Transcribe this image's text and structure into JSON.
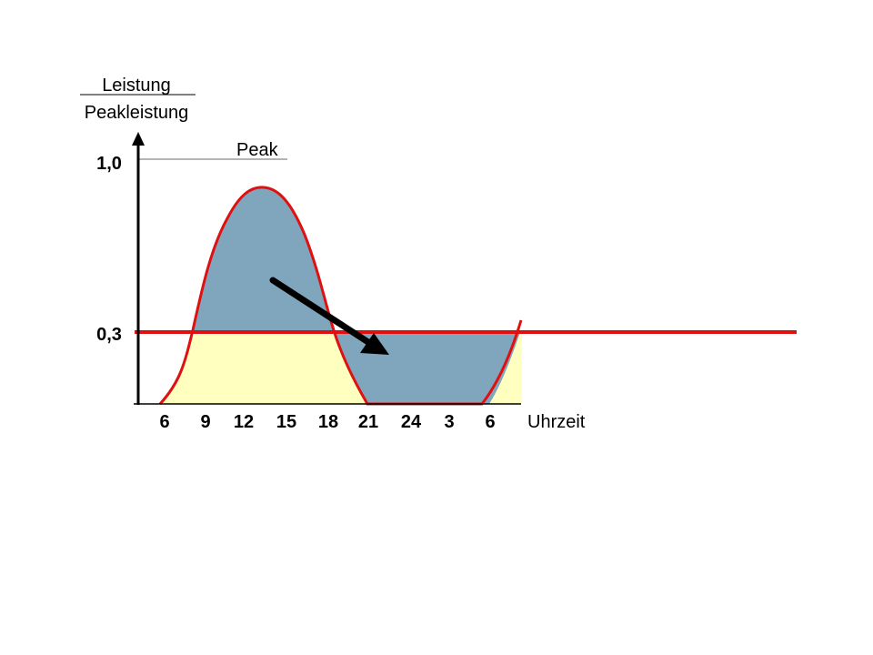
{
  "chart_data": {
    "type": "area",
    "ylabel_top": "Leistung",
    "ylabel_bottom": "Peakleistung",
    "xlabel": "Uhrzeit",
    "x_ticks": [
      "6",
      "9",
      "12",
      "15",
      "18",
      "21",
      "24",
      "3",
      "6"
    ],
    "y_ticks": [
      "1,0",
      "0,3"
    ],
    "ylim": [
      0,
      1.0
    ],
    "peak_label": "Peak",
    "threshold": 0.3,
    "series": [
      {
        "x": [
          "6",
          "9",
          "12",
          "15",
          "18",
          "21",
          "24",
          "3",
          "6"
        ],
        "values": [
          0.0,
          0.3,
          0.8,
          0.8,
          0.3,
          0.0,
          0.0,
          0.0,
          0.3
        ]
      }
    ],
    "annotation": "arrow shifting load from the peak above 0,3 into the valley below 0,3",
    "colors": {
      "above_threshold": "#7fa6bd",
      "below_threshold": "#ffffbf",
      "curve": "#e01010",
      "threshold_line": "#e01010",
      "axis": "#000000",
      "arrow": "#000000"
    }
  }
}
